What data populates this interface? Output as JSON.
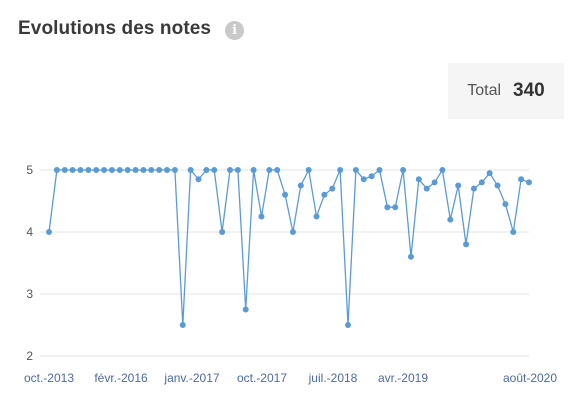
{
  "header": {
    "title": "Evolutions des notes",
    "info_icon": "info-icon"
  },
  "total": {
    "label": "Total",
    "value": "340"
  },
  "colors": {
    "series": "#5b9bd5",
    "grid": "#e6e6e6",
    "axis_text": "#555555",
    "x_tick_text": "#4f6aa0"
  },
  "chart_data": {
    "type": "line",
    "title": "",
    "xlabel": "",
    "ylabel": "",
    "ylim": [
      2,
      5
    ],
    "yticks": [
      2,
      3,
      4,
      5
    ],
    "xtick_labels": [
      "oct.-2013",
      "févr.-2016",
      "janv.-2017",
      "oct.-2017",
      "juil.-2018",
      "avr.-2019",
      "août-2020"
    ],
    "grid": true,
    "series": [
      {
        "name": "",
        "values": [
          4.0,
          5.0,
          5.0,
          5.0,
          5.0,
          5.0,
          5.0,
          5.0,
          5.0,
          5.0,
          5.0,
          5.0,
          5.0,
          5.0,
          5.0,
          5.0,
          5.0,
          2.5,
          5.0,
          4.85,
          5.0,
          5.0,
          4.0,
          5.0,
          5.0,
          2.75,
          5.0,
          4.25,
          5.0,
          5.0,
          4.6,
          4.0,
          4.75,
          5.0,
          4.25,
          4.6,
          4.7,
          5.0,
          2.5,
          5.0,
          4.85,
          4.9,
          5.0,
          4.4,
          4.4,
          5.0,
          3.6,
          4.85,
          4.7,
          4.8,
          5.0,
          4.2,
          4.75,
          3.8,
          4.7,
          4.8,
          4.95,
          4.75,
          4.45,
          4.0,
          4.85,
          4.8
        ]
      }
    ]
  }
}
